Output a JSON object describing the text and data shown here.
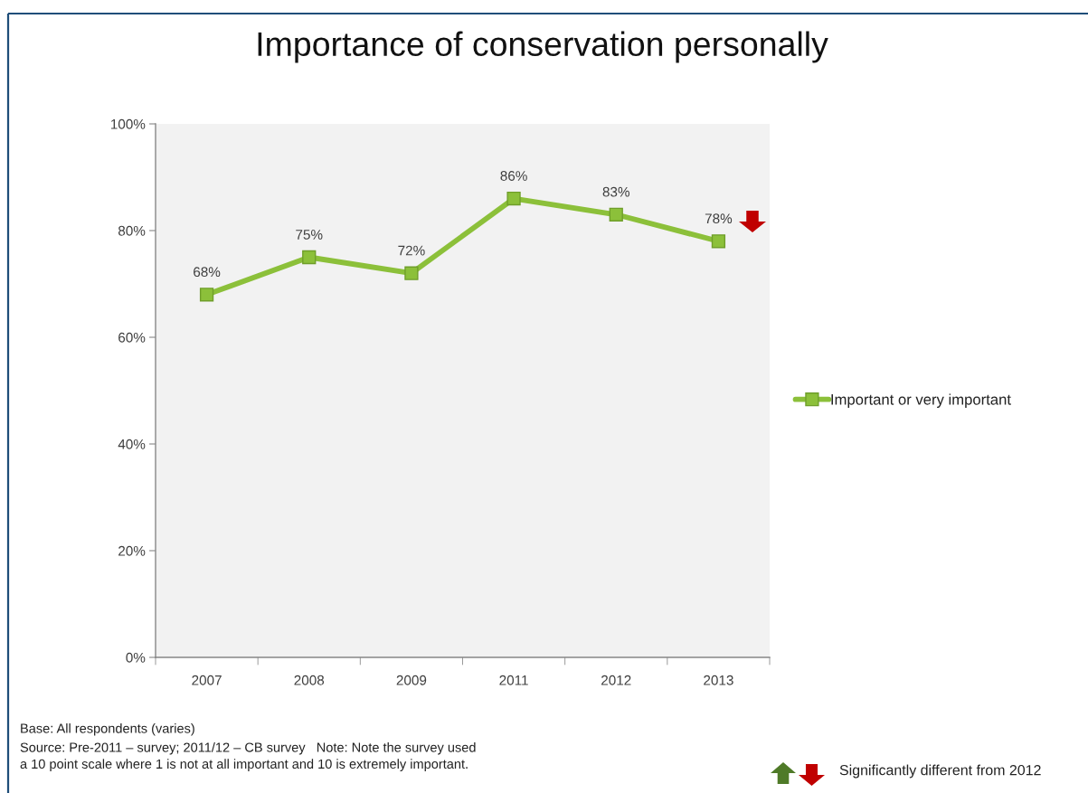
{
  "chart_data": {
    "type": "line",
    "title": "Importance of conservation personally",
    "categories": [
      "2007",
      "2008",
      "2009",
      "2011",
      "2012",
      "2013"
    ],
    "series": [
      {
        "name": "Important or very important",
        "color": "#8cc03a",
        "values": [
          68,
          75,
          72,
          86,
          83,
          78
        ],
        "value_labels": [
          "68%",
          "75%",
          "72%",
          "86%",
          "83%",
          "78%"
        ]
      }
    ],
    "ylim": [
      0,
      100
    ],
    "yticks": [
      {
        "value": 0,
        "label": "0%"
      },
      {
        "value": 20,
        "label": "20%"
      },
      {
        "value": 40,
        "label": "40%"
      },
      {
        "value": 60,
        "label": "60%"
      },
      {
        "value": 80,
        "label": "80%"
      },
      {
        "value": 100,
        "label": "100%"
      }
    ],
    "legend": "right",
    "marker": "square",
    "line_style": "solid",
    "annotations": [
      "Base: All respondents (varies)",
      "Source: Pre-2011 – survey; 2011/12 – CB survey   Note: Note the survey used\na 10 point scale where 1 is not at all important and 10 is extremely important.",
      "Significantly different from 2012"
    ]
  }
}
